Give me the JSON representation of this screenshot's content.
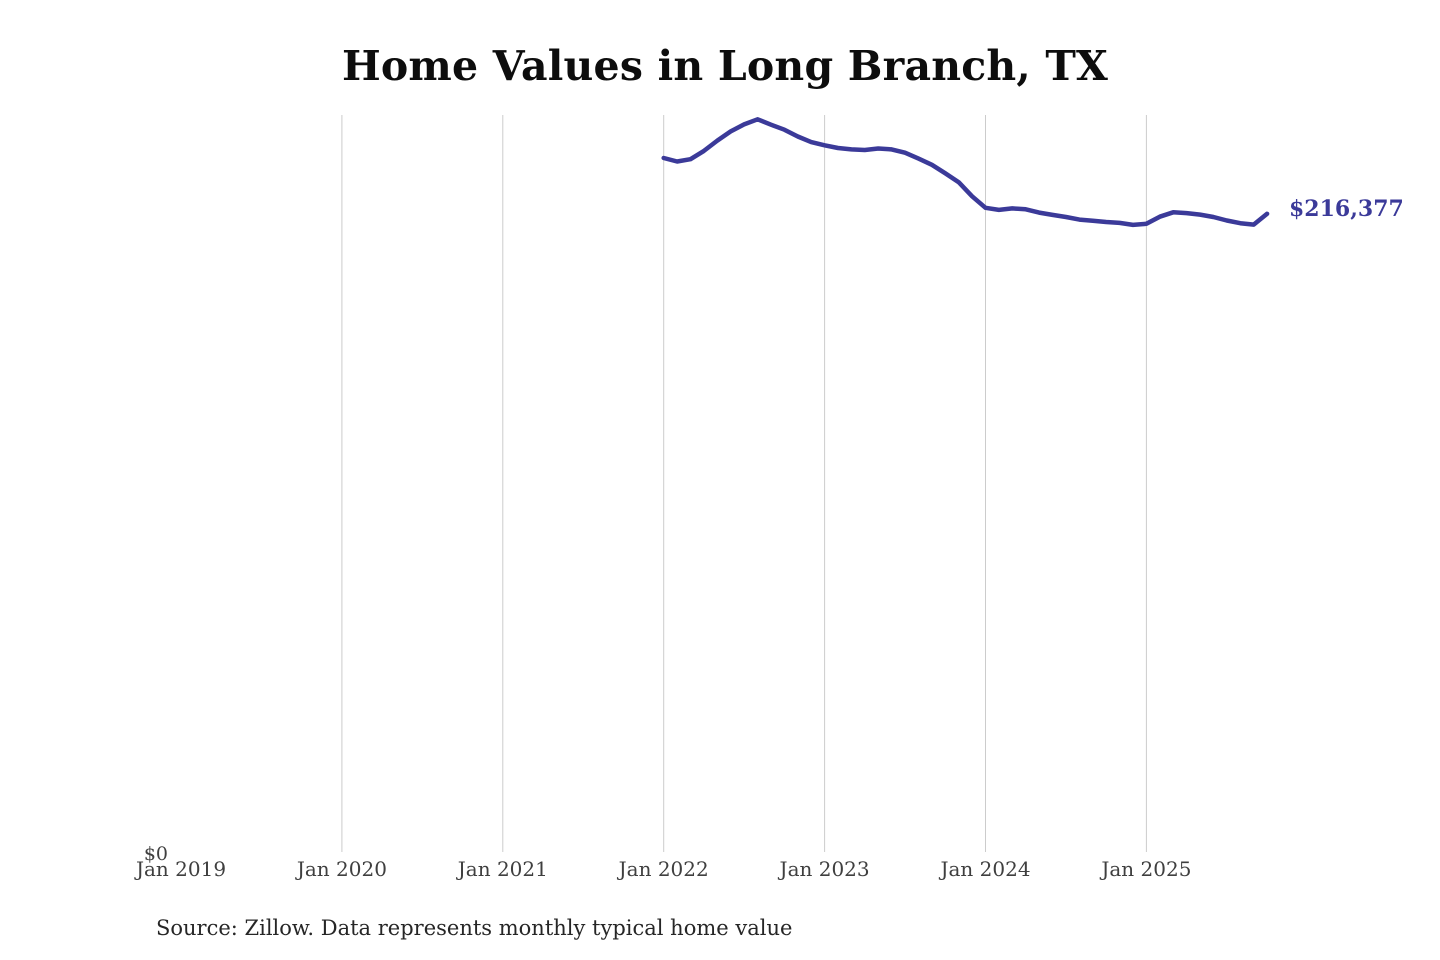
{
  "chart_data": {
    "type": "line",
    "title": "Home Values in Long Branch, TX",
    "x_tick_labels": [
      "Jan 2019",
      "Jan 2020",
      "Jan 2021",
      "Jan 2022",
      "Jan 2023",
      "Jan 2024",
      "Jan 2025"
    ],
    "gridline_labels": [
      "Jan 2020",
      "Jan 2021",
      "Jan 2022",
      "Jan 2023",
      "Jan 2024",
      "Jan 2025"
    ],
    "grid": "vertical-only",
    "legend": "none",
    "y_axis": {
      "zero_label": "$0",
      "min": 0,
      "max_implied": 290000
    },
    "end_label": "$216,377",
    "last_value": 216377,
    "line_color": "#3b3a99",
    "gridline_color": "#cccccc",
    "source_note": "Source: Zillow. Data represents monthly typical home value",
    "series": [
      {
        "name": "Monthly typical home value",
        "unit": "USD",
        "frequency": "monthly",
        "start_month": "Jan 2022",
        "start_month_offset_from_first_tick": 36,
        "values": [
          235300,
          234100,
          234900,
          237700,
          241200,
          244300,
          246700,
          248400,
          246600,
          244900,
          242600,
          240700,
          239600,
          238700,
          238200,
          238000,
          238500,
          238200,
          237100,
          235100,
          233000,
          230100,
          227100,
          222300,
          218400,
          217700,
          218200,
          217900,
          216800,
          216000,
          215300,
          214400,
          214000,
          213600,
          213300,
          212600,
          213000,
          215400,
          216900,
          216600,
          216100,
          215300,
          214100,
          213200,
          212700,
          216377
        ]
      }
    ]
  }
}
